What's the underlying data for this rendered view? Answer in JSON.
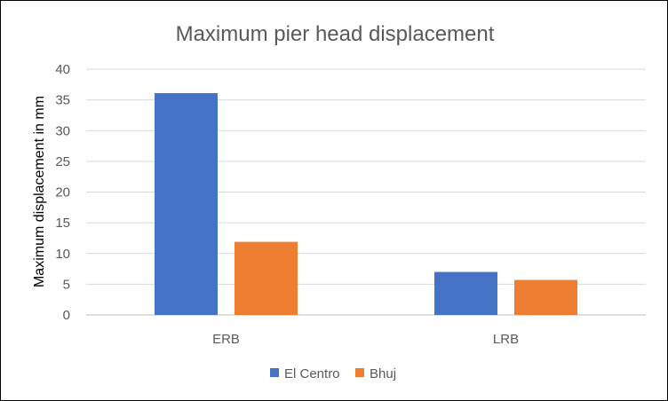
{
  "chart_data": {
    "type": "bar",
    "title": "Maximum pier head displacement",
    "xlabel": "",
    "ylabel": "Maximum displacement in mm",
    "categories": [
      "ERB",
      "LRB"
    ],
    "series": [
      {
        "name": "El Centro",
        "color": "#4472c4",
        "values": [
          36.1,
          7.0
        ]
      },
      {
        "name": "Bhuj",
        "color": "#ed7d31",
        "values": [
          11.9,
          5.7
        ]
      }
    ],
    "ylim": [
      0,
      40
    ],
    "yticks": [
      "0",
      "5",
      "10",
      "15",
      "20",
      "25",
      "30",
      "35",
      "40"
    ],
    "grid": true,
    "legend_position": "bottom"
  }
}
